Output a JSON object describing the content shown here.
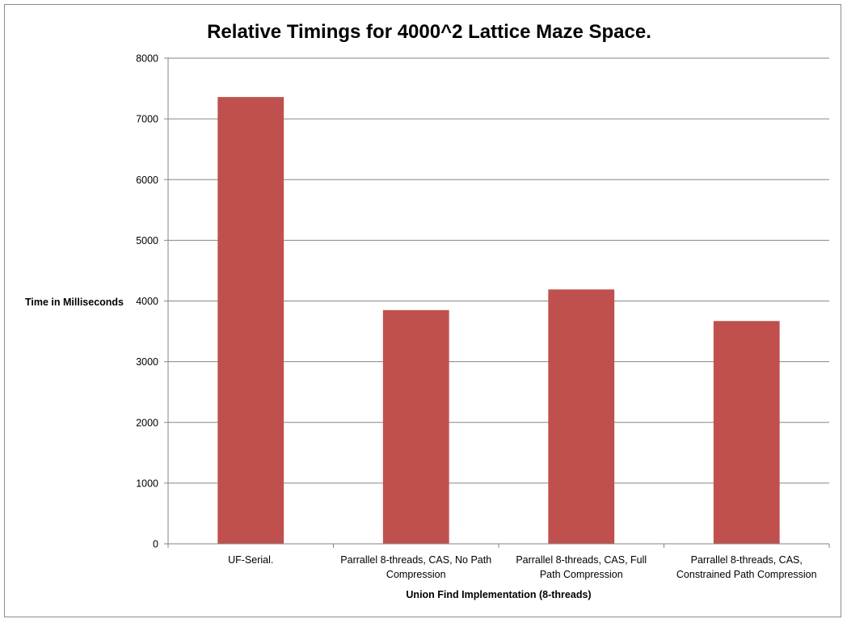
{
  "chart_data": {
    "type": "bar",
    "title": "Relative Timings for 4000^2 Lattice Maze Space.",
    "xlabel": "Union Find Implementation (8-threads)",
    "ylabel": "Time in Milliseconds",
    "categories": [
      [
        "UF-Serial."
      ],
      [
        "Parrallel 8-threads, CAS, No Path",
        "Compression"
      ],
      [
        "Parrallel 8-threads, CAS, Full",
        "Path Compression"
      ],
      [
        "Parrallel 8-threads, CAS,",
        "Constrained Path Compression"
      ]
    ],
    "values": [
      7360,
      3850,
      4190,
      3670
    ],
    "ylim": [
      0,
      8000
    ],
    "yticks": [
      0,
      1000,
      2000,
      3000,
      4000,
      5000,
      6000,
      7000,
      8000
    ],
    "grid": true,
    "legend": "none",
    "colors": {
      "bar": "#c0504d",
      "grid": "#868686",
      "axis": "#868686"
    }
  }
}
